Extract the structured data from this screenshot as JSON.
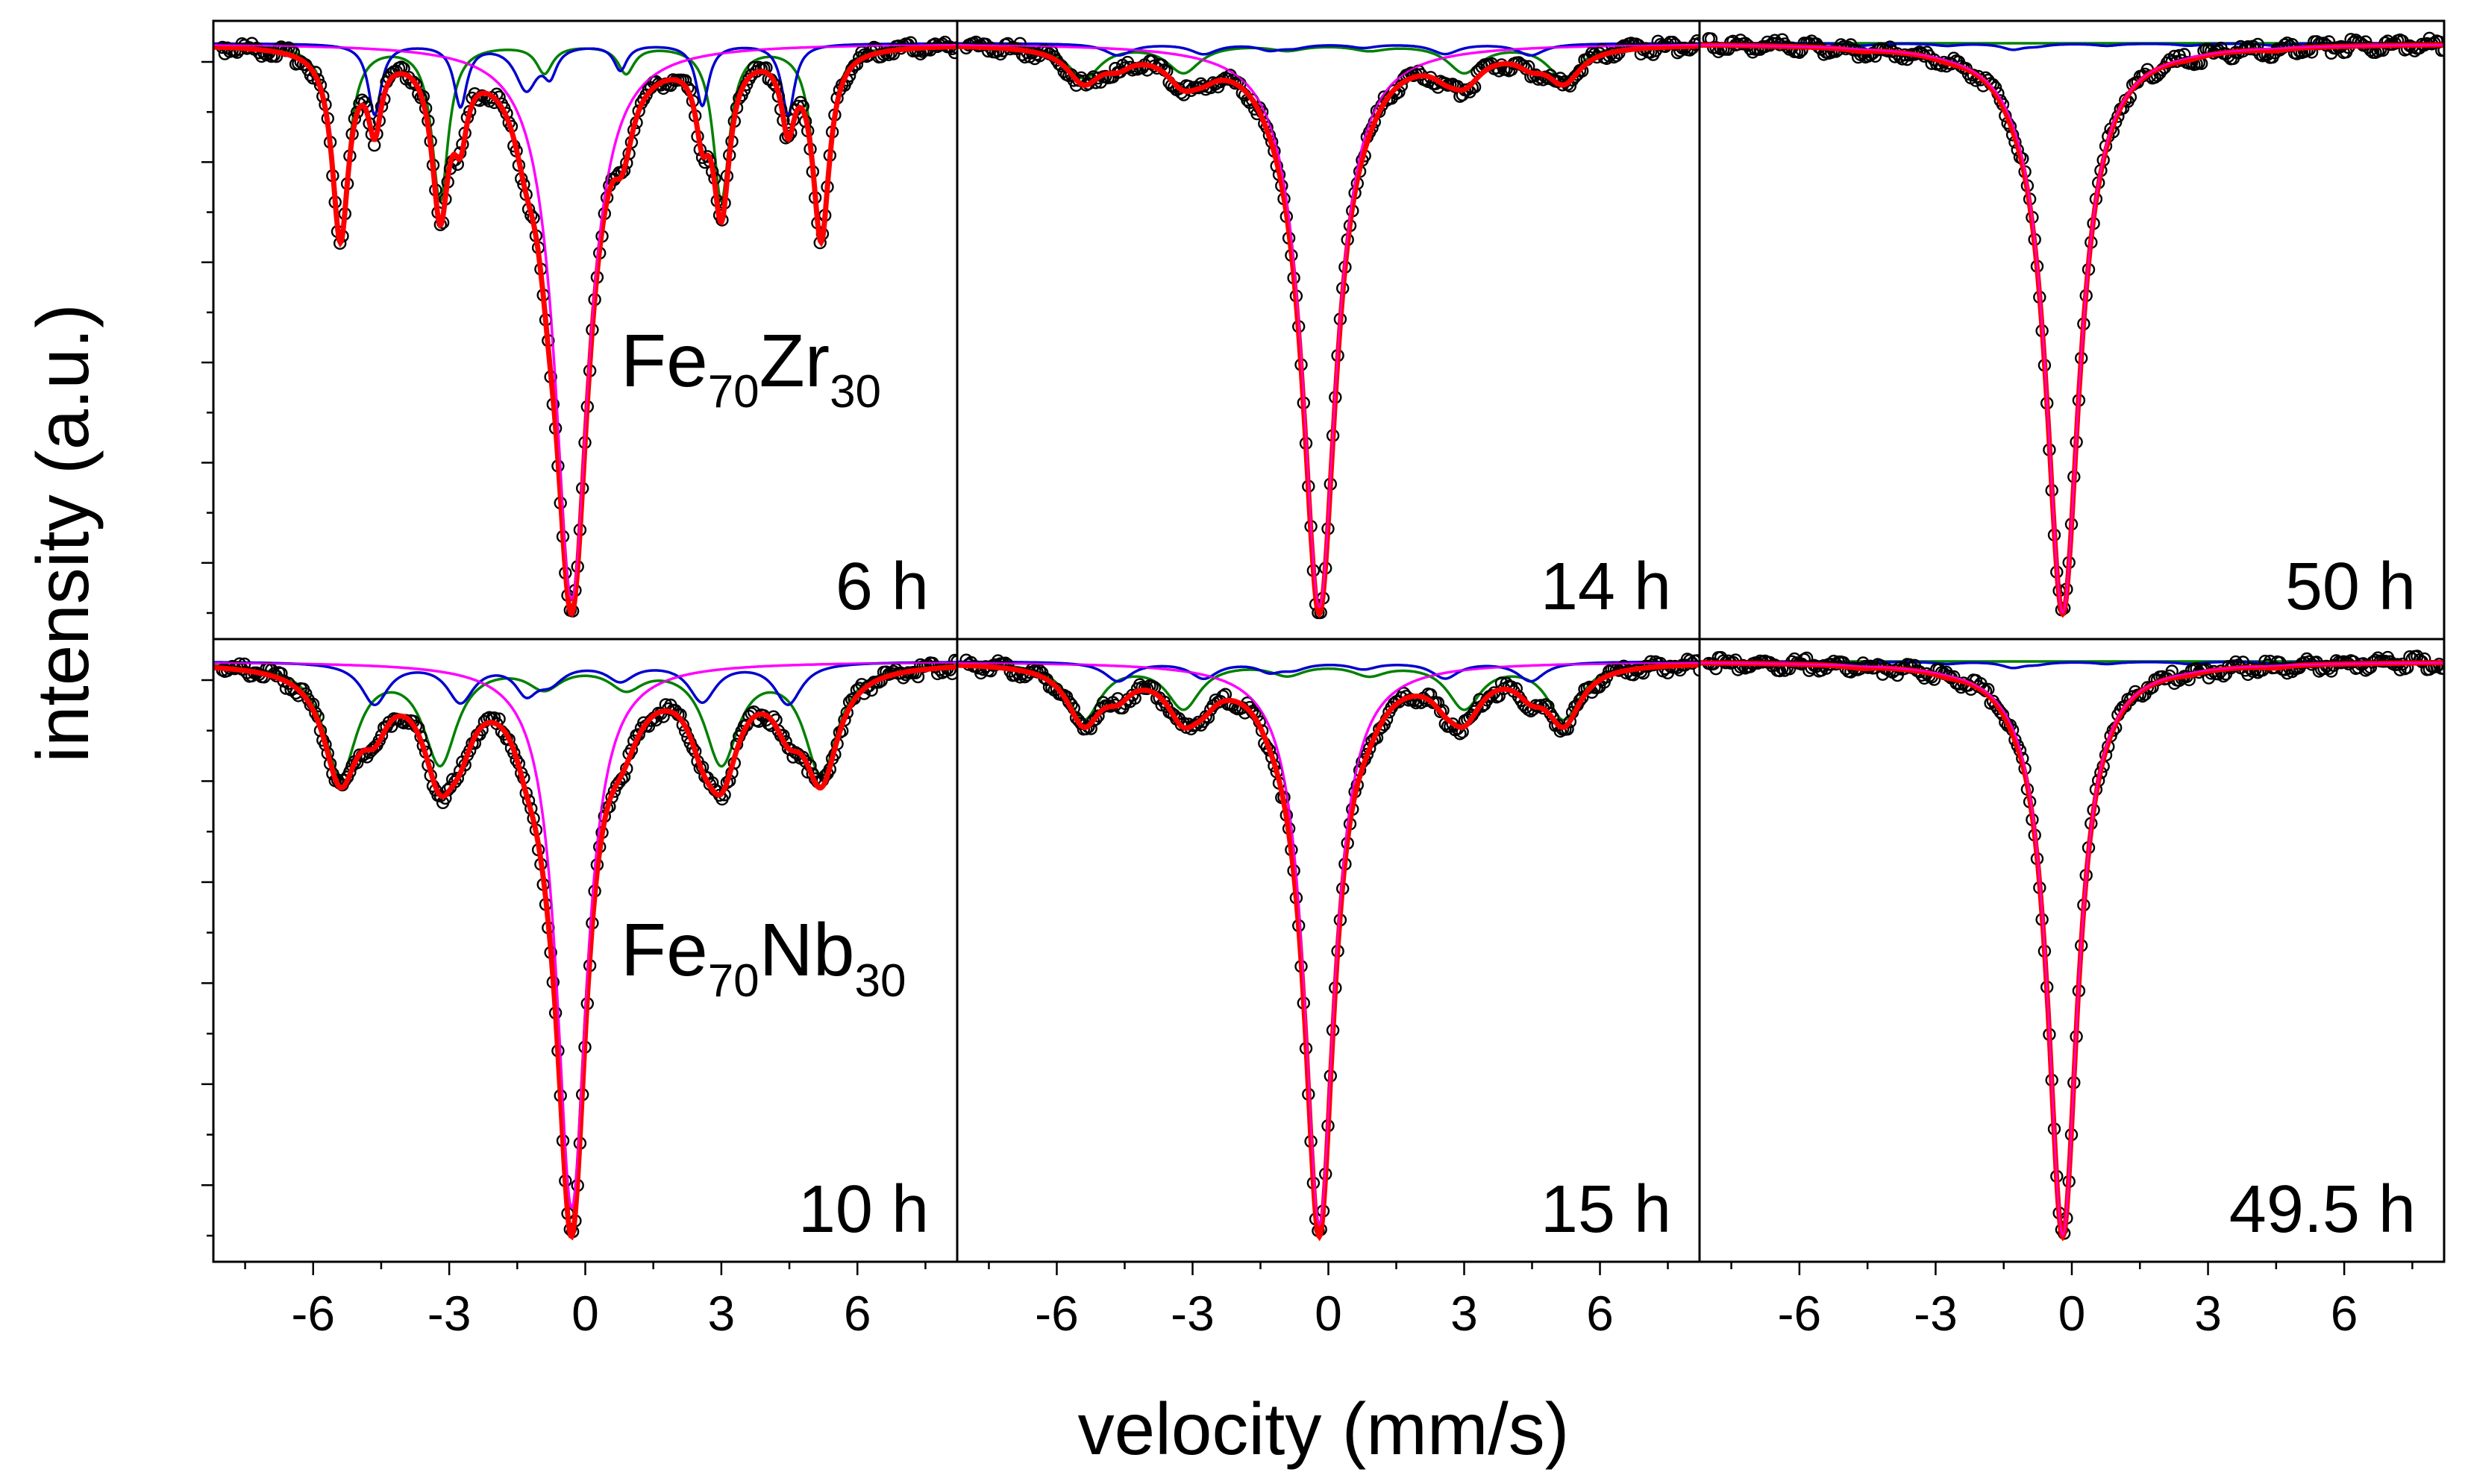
{
  "chart_data": {
    "type": "line",
    "title": "",
    "xlabel": "velocity (mm/s)",
    "ylabel": "intensity (a.u.)",
    "xlim": [
      -8.2,
      8.2
    ],
    "xticks": [
      -6,
      -3,
      0,
      3,
      6
    ],
    "xtick_labels": [
      "-6",
      "-3",
      "0",
      "3",
      "6"
    ],
    "layout": "2 rows x 3 columns, shared x axis",
    "series_colors": {
      "data": "#000000",
      "total_fit": "#ff0000",
      "singlet_component": "#ff00ff",
      "sextet_component_1": "#008000",
      "sextet_component_2": "#0000cd"
    },
    "series_names": [
      "measured data (open circles)",
      "total fit",
      "singlet component",
      "sextet component 1",
      "sextet component 2"
    ],
    "sextet_line_positions": [
      -5.4,
      -3.2,
      -0.9,
      0.9,
      3.0,
      5.2
    ],
    "panels": [
      {
        "row": 0,
        "col": 0,
        "sample": {
          "element1": "Fe",
          "sub1": "70",
          "element2": "Zr",
          "sub2": "30"
        },
        "time": "6 h",
        "singlet_center": -0.3,
        "singlet_depth": 1.0,
        "singlet_width": 0.45,
        "sextet_depths": [
          0.34,
          0.28,
          0.05,
          0.05,
          0.28,
          0.34
        ],
        "sextet_width": 0.22,
        "secondary_depth": 0.08
      },
      {
        "row": 0,
        "col": 1,
        "sample": null,
        "time": "14 h",
        "singlet_center": -0.2,
        "singlet_depth": 1.0,
        "singlet_width": 0.45,
        "sextet_depths": [
          0.06,
          0.05,
          0.01,
          0.01,
          0.05,
          0.06
        ],
        "sextet_width": 0.45,
        "secondary_depth": 0.01
      },
      {
        "row": 0,
        "col": 2,
        "sample": null,
        "time": "50 h",
        "singlet_center": -0.2,
        "singlet_depth": 1.0,
        "singlet_width": 0.45,
        "sextet_depths": [
          0,
          0,
          0,
          0,
          0,
          0
        ],
        "sextet_width": 0.4,
        "secondary_depth": 0.01
      },
      {
        "row": 1,
        "col": 0,
        "sample": {
          "element1": "Fe",
          "sub1": "70",
          "element2": "Nb",
          "sub2": "30"
        },
        "time": "10 h",
        "singlet_center": -0.3,
        "singlet_depth": 1.0,
        "singlet_width": 0.4,
        "sextet_depths": [
          0.2,
          0.18,
          0.04,
          0.04,
          0.18,
          0.2
        ],
        "sextet_width": 0.45,
        "secondary_depth": 0.05
      },
      {
        "row": 1,
        "col": 1,
        "sample": null,
        "time": "15 h",
        "singlet_center": -0.2,
        "singlet_depth": 1.0,
        "singlet_width": 0.4,
        "sextet_depths": [
          0.1,
          0.08,
          0.02,
          0.02,
          0.08,
          0.1
        ],
        "sextet_width": 0.45,
        "secondary_depth": 0.015
      },
      {
        "row": 1,
        "col": 2,
        "sample": null,
        "time": "49.5 h",
        "singlet_center": -0.2,
        "singlet_depth": 1.0,
        "singlet_width": 0.4,
        "sextet_depths": [
          0,
          0,
          0,
          0,
          0,
          0
        ],
        "sextet_width": 0.4,
        "secondary_depth": 0.01
      }
    ]
  }
}
